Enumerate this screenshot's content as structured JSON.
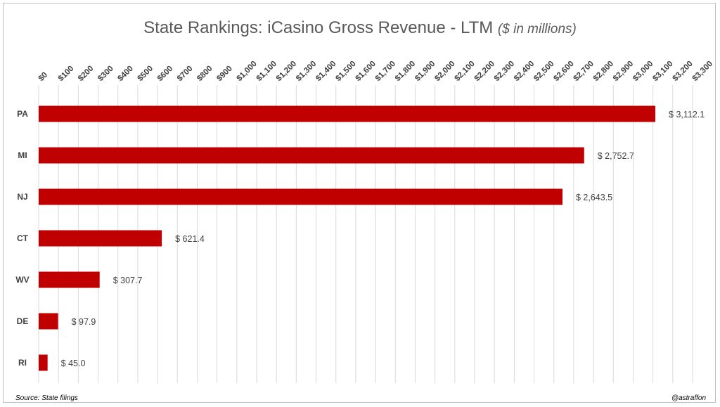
{
  "title": "State Rankings: iCasino Gross Revenue - LTM",
  "title_units": "($ in millions)",
  "source": "Source: State filings",
  "credit": "@astraffon",
  "colors": {
    "bar": "#c00000",
    "grid": "#d9d9d9",
    "text": "#404040"
  },
  "chart_data": {
    "type": "bar",
    "orientation": "horizontal",
    "title": "State Rankings: iCasino Gross Revenue - LTM ($ in millions)",
    "categories": [
      "PA",
      "MI",
      "NJ",
      "CT",
      "WV",
      "DE",
      "RI"
    ],
    "values": [
      3112.1,
      2752.7,
      2643.5,
      621.4,
      307.7,
      97.9,
      45.0
    ],
    "data_labels": [
      "$ 3,112.1",
      "$ 2,752.7",
      "$ 2,643.5",
      "$ 621.4",
      "$ 307.7",
      "$ 97.9",
      "$ 45.0"
    ],
    "xlim": [
      0,
      3300
    ],
    "x_tick_labels": [
      "$0",
      "$100",
      "$200",
      "$300",
      "$400",
      "$500",
      "$600",
      "$700",
      "$800",
      "$900",
      "$1,000",
      "$1,100",
      "$1,200",
      "$1,300",
      "$1,400",
      "$1,500",
      "$1,600",
      "$1,700",
      "$1,800",
      "$1,900",
      "$2,000",
      "$2,100",
      "$2,200",
      "$2,300",
      "$2,400",
      "$2,500",
      "$2,600",
      "$2,700",
      "$2,800",
      "$2,900",
      "$3,000",
      "$3,100",
      "$3,200",
      "$3,300"
    ],
    "x_axis_position": "top",
    "grid": true,
    "legend": "none"
  }
}
